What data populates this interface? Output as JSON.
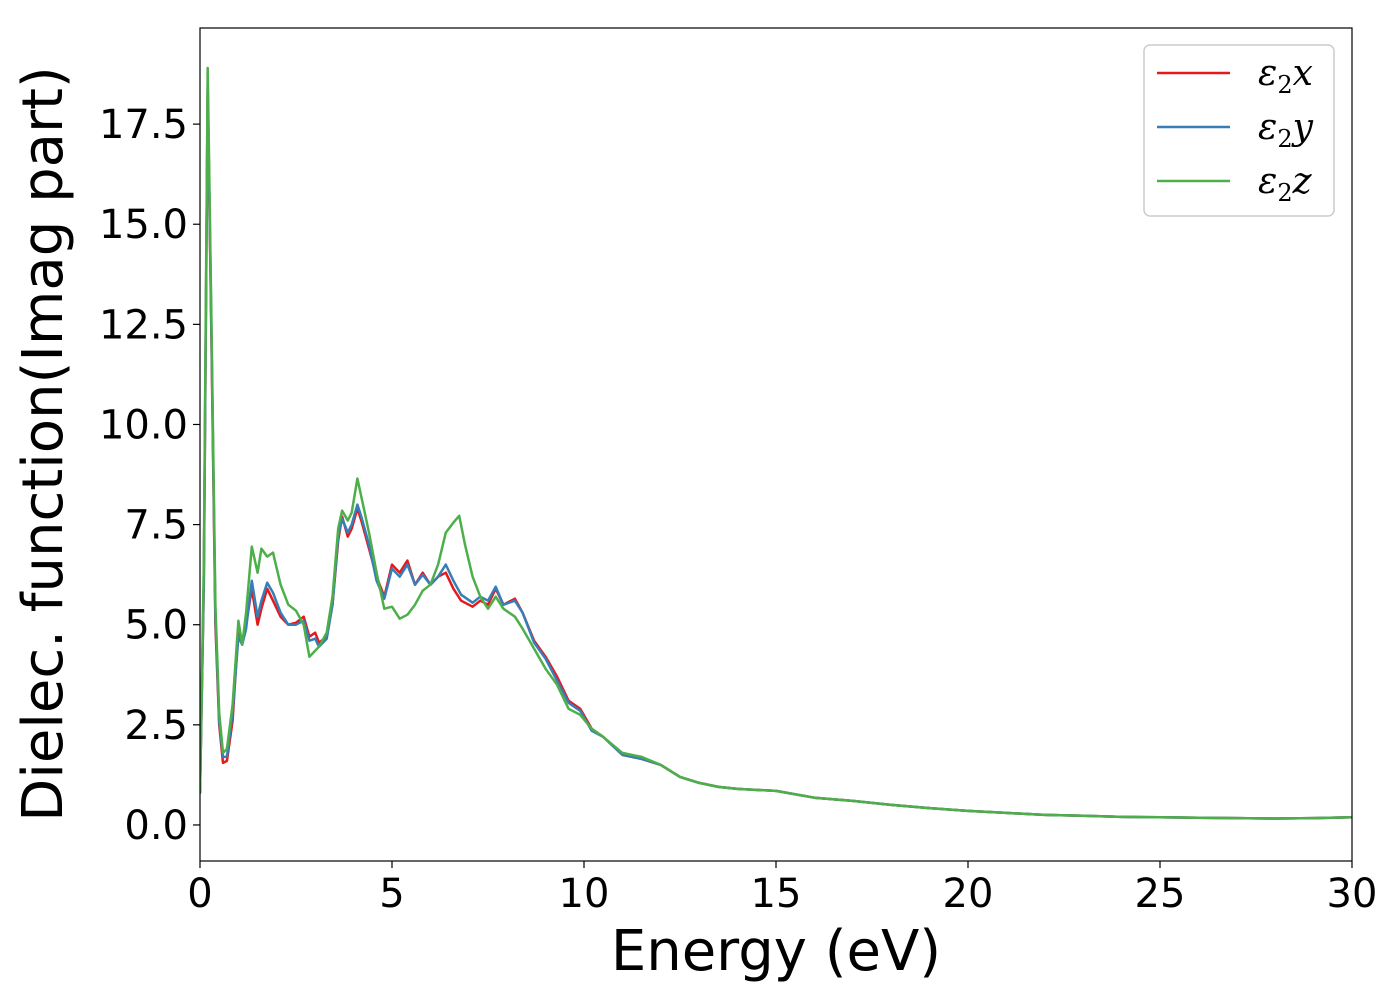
{
  "chart_data": {
    "type": "line",
    "title": "",
    "xlabel": "Energy (eV)",
    "ylabel": "Dielec. function(Imag part)",
    "xlim": [
      0,
      30
    ],
    "ylim": [
      -0.9,
      19.9
    ],
    "x_ticks": [
      0,
      5,
      10,
      15,
      20,
      25,
      30
    ],
    "x_tick_labels": [
      "0",
      "5",
      "10",
      "15",
      "20",
      "25",
      "30"
    ],
    "y_ticks": [
      0.0,
      2.5,
      5.0,
      7.5,
      10.0,
      12.5,
      15.0,
      17.5
    ],
    "y_tick_labels": [
      "0.0",
      "2.5",
      "5.0",
      "7.5",
      "10.0",
      "12.5",
      "15.0",
      "17.5"
    ],
    "grid": false,
    "legend_position": "top-right",
    "series": [
      {
        "name": "ε₂x",
        "legend_main": "ε",
        "legend_sub": "2",
        "legend_var": "x",
        "color": "#e41a1c",
        "points": [
          [
            0,
            0.8
          ],
          [
            0.1,
            6
          ],
          [
            0.2,
            18.4
          ],
          [
            0.3,
            12
          ],
          [
            0.4,
            5
          ],
          [
            0.5,
            2.5
          ],
          [
            0.6,
            1.55
          ],
          [
            0.7,
            1.6
          ],
          [
            0.85,
            2.6
          ],
          [
            1.0,
            4.9
          ],
          [
            1.1,
            4.6
          ],
          [
            1.2,
            5.0
          ],
          [
            1.35,
            5.9
          ],
          [
            1.5,
            5.0
          ],
          [
            1.6,
            5.4
          ],
          [
            1.75,
            5.9
          ],
          [
            1.9,
            5.6
          ],
          [
            2.1,
            5.2
          ],
          [
            2.3,
            5.0
          ],
          [
            2.5,
            5.05
          ],
          [
            2.7,
            5.2
          ],
          [
            2.85,
            4.7
          ],
          [
            3.0,
            4.8
          ],
          [
            3.1,
            4.55
          ],
          [
            3.3,
            4.7
          ],
          [
            3.45,
            5.5
          ],
          [
            3.6,
            7.1
          ],
          [
            3.7,
            7.7
          ],
          [
            3.85,
            7.2
          ],
          [
            3.95,
            7.4
          ],
          [
            4.1,
            7.9
          ],
          [
            4.2,
            7.6
          ],
          [
            4.4,
            6.9
          ],
          [
            4.6,
            6.2
          ],
          [
            4.8,
            5.7
          ],
          [
            5.0,
            6.5
          ],
          [
            5.2,
            6.3
          ],
          [
            5.4,
            6.6
          ],
          [
            5.6,
            6.0
          ],
          [
            5.8,
            6.3
          ],
          [
            6.0,
            6.0
          ],
          [
            6.2,
            6.2
          ],
          [
            6.4,
            6.3
          ],
          [
            6.6,
            5.9
          ],
          [
            6.8,
            5.6
          ],
          [
            7.1,
            5.45
          ],
          [
            7.3,
            5.6
          ],
          [
            7.5,
            5.5
          ],
          [
            7.7,
            5.9
          ],
          [
            7.9,
            5.5
          ],
          [
            8.2,
            5.65
          ],
          [
            8.4,
            5.3
          ],
          [
            8.7,
            4.6
          ],
          [
            9.0,
            4.2
          ],
          [
            9.3,
            3.7
          ],
          [
            9.6,
            3.1
          ],
          [
            9.9,
            2.9
          ],
          [
            10.2,
            2.4
          ],
          [
            10.5,
            2.2
          ],
          [
            11.0,
            1.75
          ],
          [
            11.5,
            1.65
          ],
          [
            12.0,
            1.5
          ],
          [
            12.5,
            1.2
          ],
          [
            13.0,
            1.05
          ],
          [
            13.5,
            0.95
          ],
          [
            14.0,
            0.9
          ],
          [
            15.0,
            0.85
          ],
          [
            16.0,
            0.68
          ],
          [
            17.0,
            0.6
          ],
          [
            18.0,
            0.5
          ],
          [
            19.0,
            0.42
          ],
          [
            20.0,
            0.35
          ],
          [
            21.0,
            0.3
          ],
          [
            22.0,
            0.25
          ],
          [
            23.0,
            0.23
          ],
          [
            24.0,
            0.2
          ],
          [
            25.0,
            0.19
          ],
          [
            26.0,
            0.18
          ],
          [
            27.0,
            0.17
          ],
          [
            28.0,
            0.16
          ],
          [
            29.0,
            0.17
          ],
          [
            30.0,
            0.19
          ]
        ]
      },
      {
        "name": "ε₂y",
        "legend_main": "ε",
        "legend_sub": "2",
        "legend_var": "y",
        "color": "#377eb8",
        "points": [
          [
            0,
            0.8
          ],
          [
            0.1,
            6
          ],
          [
            0.2,
            18.5
          ],
          [
            0.3,
            12.2
          ],
          [
            0.4,
            5.2
          ],
          [
            0.5,
            2.6
          ],
          [
            0.6,
            1.7
          ],
          [
            0.7,
            1.7
          ],
          [
            0.85,
            2.8
          ],
          [
            1.0,
            4.7
          ],
          [
            1.1,
            4.5
          ],
          [
            1.2,
            4.9
          ],
          [
            1.35,
            6.1
          ],
          [
            1.5,
            5.2
          ],
          [
            1.6,
            5.6
          ],
          [
            1.75,
            6.05
          ],
          [
            1.9,
            5.8
          ],
          [
            2.1,
            5.3
          ],
          [
            2.3,
            5.0
          ],
          [
            2.5,
            5.0
          ],
          [
            2.7,
            5.1
          ],
          [
            2.85,
            4.6
          ],
          [
            3.0,
            4.65
          ],
          [
            3.1,
            4.45
          ],
          [
            3.3,
            4.65
          ],
          [
            3.45,
            5.5
          ],
          [
            3.6,
            7.2
          ],
          [
            3.7,
            7.65
          ],
          [
            3.85,
            7.3
          ],
          [
            3.95,
            7.5
          ],
          [
            4.1,
            8.0
          ],
          [
            4.2,
            7.7
          ],
          [
            4.4,
            7.0
          ],
          [
            4.6,
            6.1
          ],
          [
            4.8,
            5.65
          ],
          [
            5.0,
            6.4
          ],
          [
            5.2,
            6.2
          ],
          [
            5.4,
            6.5
          ],
          [
            5.6,
            6.0
          ],
          [
            5.8,
            6.25
          ],
          [
            6.0,
            6.0
          ],
          [
            6.2,
            6.2
          ],
          [
            6.4,
            6.5
          ],
          [
            6.6,
            6.1
          ],
          [
            6.8,
            5.75
          ],
          [
            7.1,
            5.55
          ],
          [
            7.3,
            5.7
          ],
          [
            7.5,
            5.6
          ],
          [
            7.7,
            5.95
          ],
          [
            7.9,
            5.5
          ],
          [
            8.2,
            5.6
          ],
          [
            8.4,
            5.3
          ],
          [
            8.7,
            4.55
          ],
          [
            9.0,
            4.15
          ],
          [
            9.3,
            3.6
          ],
          [
            9.6,
            3.05
          ],
          [
            9.9,
            2.85
          ],
          [
            10.2,
            2.35
          ],
          [
            10.5,
            2.2
          ],
          [
            11.0,
            1.75
          ],
          [
            11.5,
            1.65
          ],
          [
            12.0,
            1.5
          ],
          [
            12.5,
            1.2
          ],
          [
            13.0,
            1.05
          ],
          [
            13.5,
            0.95
          ],
          [
            14.0,
            0.9
          ],
          [
            15.0,
            0.85
          ],
          [
            16.0,
            0.68
          ],
          [
            17.0,
            0.6
          ],
          [
            18.0,
            0.5
          ],
          [
            19.0,
            0.42
          ],
          [
            20.0,
            0.35
          ],
          [
            21.0,
            0.3
          ],
          [
            22.0,
            0.25
          ],
          [
            23.0,
            0.23
          ],
          [
            24.0,
            0.2
          ],
          [
            25.0,
            0.19
          ],
          [
            26.0,
            0.18
          ],
          [
            27.0,
            0.17
          ],
          [
            28.0,
            0.16
          ],
          [
            29.0,
            0.17
          ],
          [
            30.0,
            0.19
          ]
        ]
      },
      {
        "name": "ε₂z",
        "legend_main": "ε",
        "legend_sub": "2",
        "legend_var": "z",
        "color": "#4daf4a",
        "points": [
          [
            0,
            0.8
          ],
          [
            0.1,
            6.5
          ],
          [
            0.2,
            18.9
          ],
          [
            0.3,
            12.5
          ],
          [
            0.4,
            5.5
          ],
          [
            0.5,
            2.8
          ],
          [
            0.6,
            1.8
          ],
          [
            0.7,
            1.9
          ],
          [
            0.85,
            3.0
          ],
          [
            1.0,
            5.1
          ],
          [
            1.1,
            4.5
          ],
          [
            1.2,
            5.3
          ],
          [
            1.35,
            6.95
          ],
          [
            1.5,
            6.3
          ],
          [
            1.6,
            6.9
          ],
          [
            1.75,
            6.7
          ],
          [
            1.9,
            6.8
          ],
          [
            2.1,
            6.0
          ],
          [
            2.3,
            5.5
          ],
          [
            2.5,
            5.35
          ],
          [
            2.7,
            5.0
          ],
          [
            2.85,
            4.2
          ],
          [
            3.0,
            4.35
          ],
          [
            3.1,
            4.45
          ],
          [
            3.3,
            4.8
          ],
          [
            3.45,
            5.7
          ],
          [
            3.6,
            7.4
          ],
          [
            3.7,
            7.85
          ],
          [
            3.85,
            7.6
          ],
          [
            3.95,
            7.8
          ],
          [
            4.1,
            8.65
          ],
          [
            4.2,
            8.2
          ],
          [
            4.4,
            7.3
          ],
          [
            4.6,
            6.3
          ],
          [
            4.8,
            5.4
          ],
          [
            5.0,
            5.45
          ],
          [
            5.2,
            5.15
          ],
          [
            5.4,
            5.25
          ],
          [
            5.6,
            5.5
          ],
          [
            5.8,
            5.85
          ],
          [
            6.0,
            6.0
          ],
          [
            6.2,
            6.5
          ],
          [
            6.4,
            7.3
          ],
          [
            6.6,
            7.55
          ],
          [
            6.75,
            7.72
          ],
          [
            6.9,
            7.0
          ],
          [
            7.1,
            6.2
          ],
          [
            7.3,
            5.7
          ],
          [
            7.5,
            5.4
          ],
          [
            7.7,
            5.7
          ],
          [
            7.9,
            5.4
          ],
          [
            8.2,
            5.2
          ],
          [
            8.4,
            4.9
          ],
          [
            8.7,
            4.4
          ],
          [
            9.0,
            3.9
          ],
          [
            9.3,
            3.5
          ],
          [
            9.6,
            2.9
          ],
          [
            9.9,
            2.75
          ],
          [
            10.2,
            2.4
          ],
          [
            10.5,
            2.2
          ],
          [
            11.0,
            1.8
          ],
          [
            11.5,
            1.7
          ],
          [
            12.0,
            1.5
          ],
          [
            12.5,
            1.2
          ],
          [
            13.0,
            1.05
          ],
          [
            13.5,
            0.95
          ],
          [
            14.0,
            0.9
          ],
          [
            15.0,
            0.85
          ],
          [
            16.0,
            0.68
          ],
          [
            17.0,
            0.6
          ],
          [
            18.0,
            0.5
          ],
          [
            19.0,
            0.42
          ],
          [
            20.0,
            0.35
          ],
          [
            21.0,
            0.3
          ],
          [
            22.0,
            0.25
          ],
          [
            23.0,
            0.23
          ],
          [
            24.0,
            0.2
          ],
          [
            25.0,
            0.19
          ],
          [
            26.0,
            0.18
          ],
          [
            27.0,
            0.17
          ],
          [
            28.0,
            0.16
          ],
          [
            29.0,
            0.17
          ],
          [
            30.0,
            0.19
          ]
        ]
      }
    ]
  }
}
